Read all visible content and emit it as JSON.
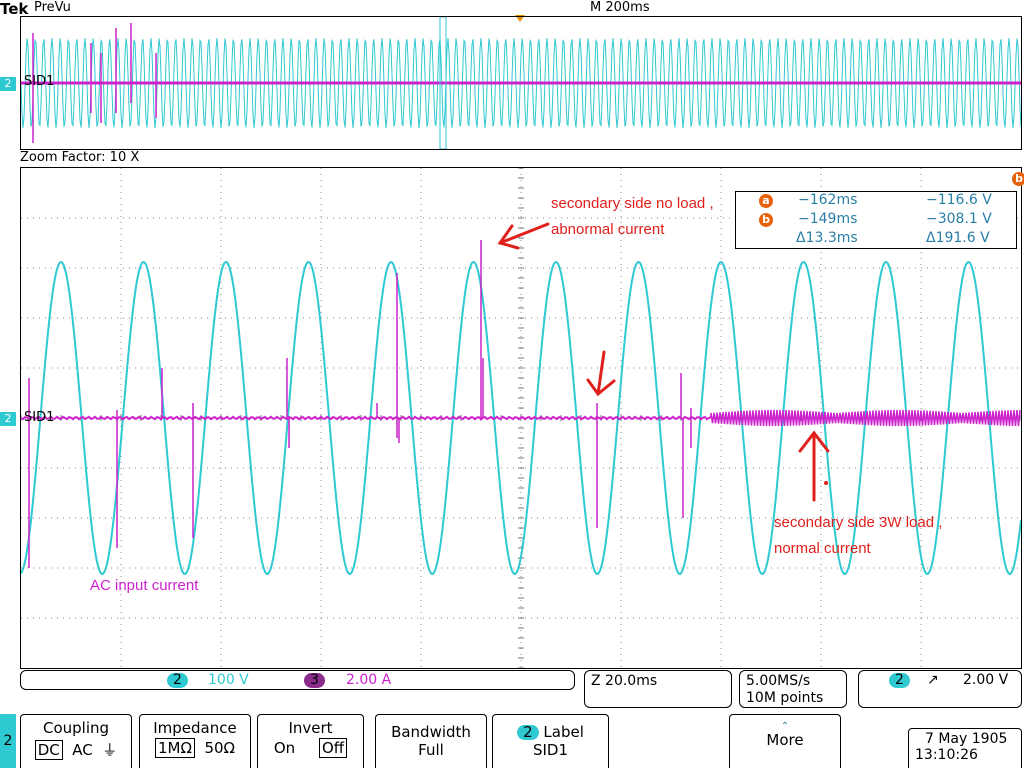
{
  "header": {
    "brand": "Tek",
    "mode": "PreVu",
    "timebase": "M 200ms"
  },
  "preview": {
    "channel_marker": "2",
    "channel_label": "SID1"
  },
  "zoom": {
    "label": "Zoom Factor: 10 X"
  },
  "main": {
    "channel_marker": "2",
    "channel_label": "SID1"
  },
  "cursor_readout": {
    "a": {
      "marker": "a",
      "time": "−162ms",
      "value": "−116.6 V"
    },
    "b": {
      "marker": "b",
      "time": "−149ms",
      "value": "−308.1 V"
    },
    "delta": {
      "time": "Δ13.3ms",
      "value": "Δ191.6 V"
    },
    "corner_marker": "b"
  },
  "annotations": {
    "no_load_1": "secondary side no load ,",
    "no_load_2": "abnormal current",
    "load_1": "secondary side 3W load ,",
    "load_2": "normal current",
    "ac_input": "AC input current"
  },
  "status": {
    "ch2_num": "2",
    "ch2_scale": "100 V",
    "ch3_num": "3",
    "ch3_scale": "2.00 A",
    "zoom_pos": "Z 20.0ms",
    "sample_rate": "5.00MS/s",
    "record_len": "10M points",
    "trig_ch": "2",
    "trig_slope": "↗",
    "trig_level": "2.00 V"
  },
  "menu": {
    "side_channel": "2",
    "coupling": {
      "title": "Coupling",
      "opt1": "DC",
      "opt2": "AC",
      "opt3": "⏚"
    },
    "impedance": {
      "title": "Impedance",
      "opt1": "1MΩ",
      "opt2": "50Ω"
    },
    "invert": {
      "title": "Invert",
      "opt1": "On",
      "opt2": "Off"
    },
    "bandwidth": {
      "title": "Bandwidth",
      "value": "Full"
    },
    "label": {
      "ch": "2",
      "title": "Label",
      "value": "SID1"
    },
    "more": {
      "title": "More"
    },
    "date": "7 May 1905",
    "time": "13:10:26"
  },
  "colors": {
    "cyan": "#2ec9d1",
    "magenta": "#cc22cc",
    "grid": "#888888",
    "annot": "#e0201c",
    "cursor": "#e8620a"
  }
}
